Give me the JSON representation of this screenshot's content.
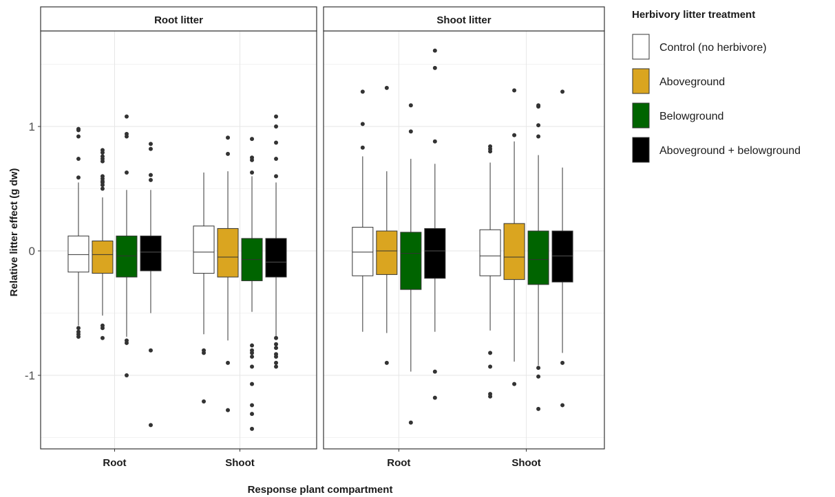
{
  "chart_data": {
    "type": "boxplot",
    "panels": [
      "Root litter",
      "Shoot litter"
    ],
    "categories": [
      "Root",
      "Shoot"
    ],
    "xlabel": "Response plant compartment",
    "ylabel": "Relative litter effect (g dw)",
    "yticks": [
      "-1",
      "0",
      "1"
    ],
    "ylim": [
      -1.55,
      1.85
    ],
    "grid": true,
    "legend": {
      "title": "Herbivory litter treatment",
      "position": "right",
      "items": [
        {
          "name": "Control (no herbivore)",
          "color": "#ffffff"
        },
        {
          "name": "Aboveground",
          "color": "#daa520"
        },
        {
          "name": "Belowground",
          "color": "#006400"
        },
        {
          "name": "Aboveground + belowground",
          "color": "#000000"
        }
      ]
    },
    "series": [
      {
        "name": "Control (no herbivore)",
        "color": "#ffffff",
        "boxes": [
          {
            "panel": "Root litter",
            "category": "Root",
            "q1": -0.17,
            "median": -0.03,
            "q3": 0.12,
            "whisker_low": -0.6,
            "whisker_high": 0.55,
            "outliers": [
              0.98,
              0.97,
              0.92,
              0.74,
              0.59,
              -0.62,
              -0.65,
              -0.67,
              -0.69
            ]
          },
          {
            "panel": "Root litter",
            "category": "Shoot",
            "q1": -0.18,
            "median": -0.01,
            "q3": 0.2,
            "whisker_low": -0.67,
            "whisker_high": 0.63,
            "outliers": [
              -0.8,
              -0.82,
              -1.21
            ]
          },
          {
            "panel": "Shoot litter",
            "category": "Root",
            "q1": -0.2,
            "median": -0.01,
            "q3": 0.19,
            "whisker_low": -0.65,
            "whisker_high": 0.76,
            "outliers": [
              1.28,
              1.02,
              0.83
            ]
          },
          {
            "panel": "Shoot litter",
            "category": "Shoot",
            "q1": -0.2,
            "median": -0.04,
            "q3": 0.17,
            "whisker_low": -0.64,
            "whisker_high": 0.71,
            "outliers": [
              0.84,
              0.82,
              0.8,
              -0.82,
              -0.93,
              -1.15,
              -1.17
            ]
          }
        ]
      },
      {
        "name": "Aboveground",
        "color": "#daa520",
        "boxes": [
          {
            "panel": "Root litter",
            "category": "Root",
            "q1": -0.18,
            "median": -0.03,
            "q3": 0.08,
            "whisker_low": -0.52,
            "whisker_high": 0.43,
            "outliers": [
              0.81,
              0.79,
              0.76,
              0.74,
              0.72,
              0.6,
              0.58,
              0.56,
              0.55,
              0.53,
              0.5,
              -0.6,
              -0.62,
              -0.7
            ]
          },
          {
            "panel": "Root litter",
            "category": "Shoot",
            "q1": -0.21,
            "median": -0.05,
            "q3": 0.18,
            "whisker_low": -0.72,
            "whisker_high": 0.64,
            "outliers": [
              0.91,
              0.78,
              -0.9,
              -1.28
            ]
          },
          {
            "panel": "Shoot litter",
            "category": "Root",
            "q1": -0.19,
            "median": 0.0,
            "q3": 0.16,
            "whisker_low": -0.66,
            "whisker_high": 0.64,
            "outliers": [
              1.31,
              -0.9
            ]
          },
          {
            "panel": "Shoot litter",
            "category": "Shoot",
            "q1": -0.23,
            "median": -0.05,
            "q3": 0.22,
            "whisker_low": -0.89,
            "whisker_high": 0.88,
            "outliers": [
              1.29,
              0.93,
              -1.07
            ]
          }
        ]
      },
      {
        "name": "Belowground",
        "color": "#006400",
        "boxes": [
          {
            "panel": "Root litter",
            "category": "Root",
            "q1": -0.21,
            "median": -0.04,
            "q3": 0.12,
            "whisker_low": -0.69,
            "whisker_high": 0.49,
            "outliers": [
              1.08,
              0.94,
              0.92,
              0.63,
              -0.72,
              -0.74,
              -1.0
            ]
          },
          {
            "panel": "Root litter",
            "category": "Shoot",
            "q1": -0.24,
            "median": -0.07,
            "q3": 0.1,
            "whisker_low": -0.49,
            "whisker_high": 0.6,
            "outliers": [
              0.9,
              0.75,
              0.73,
              0.63,
              -0.76,
              -0.8,
              -0.82,
              -0.85,
              -0.93,
              -1.07,
              -1.24,
              -1.31,
              -1.43
            ]
          },
          {
            "panel": "Shoot litter",
            "category": "Root",
            "q1": -0.31,
            "median": -0.02,
            "q3": 0.15,
            "whisker_low": -0.97,
            "whisker_high": 0.74,
            "outliers": [
              1.17,
              0.96,
              -1.38
            ]
          },
          {
            "panel": "Shoot litter",
            "category": "Shoot",
            "q1": -0.27,
            "median": -0.07,
            "q3": 0.16,
            "whisker_low": -0.92,
            "whisker_high": 0.77,
            "outliers": [
              1.17,
              1.16,
              1.01,
              0.92,
              -0.94,
              -1.01,
              -1.27
            ]
          }
        ]
      },
      {
        "name": "Aboveground + belowground",
        "color": "#000000",
        "boxes": [
          {
            "panel": "Root litter",
            "category": "Root",
            "q1": -0.16,
            "median": -0.01,
            "q3": 0.12,
            "whisker_low": -0.5,
            "whisker_high": 0.49,
            "outliers": [
              0.86,
              0.82,
              0.61,
              0.57,
              -0.8,
              -1.4
            ]
          },
          {
            "panel": "Root litter",
            "category": "Shoot",
            "q1": -0.21,
            "median": -0.09,
            "q3": 0.1,
            "whisker_low": -0.7,
            "whisker_high": 0.55,
            "outliers": [
              1.08,
              1.0,
              0.87,
              0.74,
              0.6,
              -0.7,
              -0.75,
              -0.78,
              -0.83,
              -0.85,
              -0.9,
              -0.93
            ]
          },
          {
            "panel": "Shoot litter",
            "category": "Root",
            "q1": -0.22,
            "median": 0.0,
            "q3": 0.18,
            "whisker_low": -0.65,
            "whisker_high": 0.7,
            "outliers": [
              1.61,
              1.47,
              0.88,
              -0.97,
              -1.18
            ]
          },
          {
            "panel": "Shoot litter",
            "category": "Shoot",
            "q1": -0.25,
            "median": -0.04,
            "q3": 0.16,
            "whisker_low": -0.82,
            "whisker_high": 0.67,
            "outliers": [
              1.28,
              -0.9,
              -1.24
            ]
          }
        ]
      }
    ]
  }
}
